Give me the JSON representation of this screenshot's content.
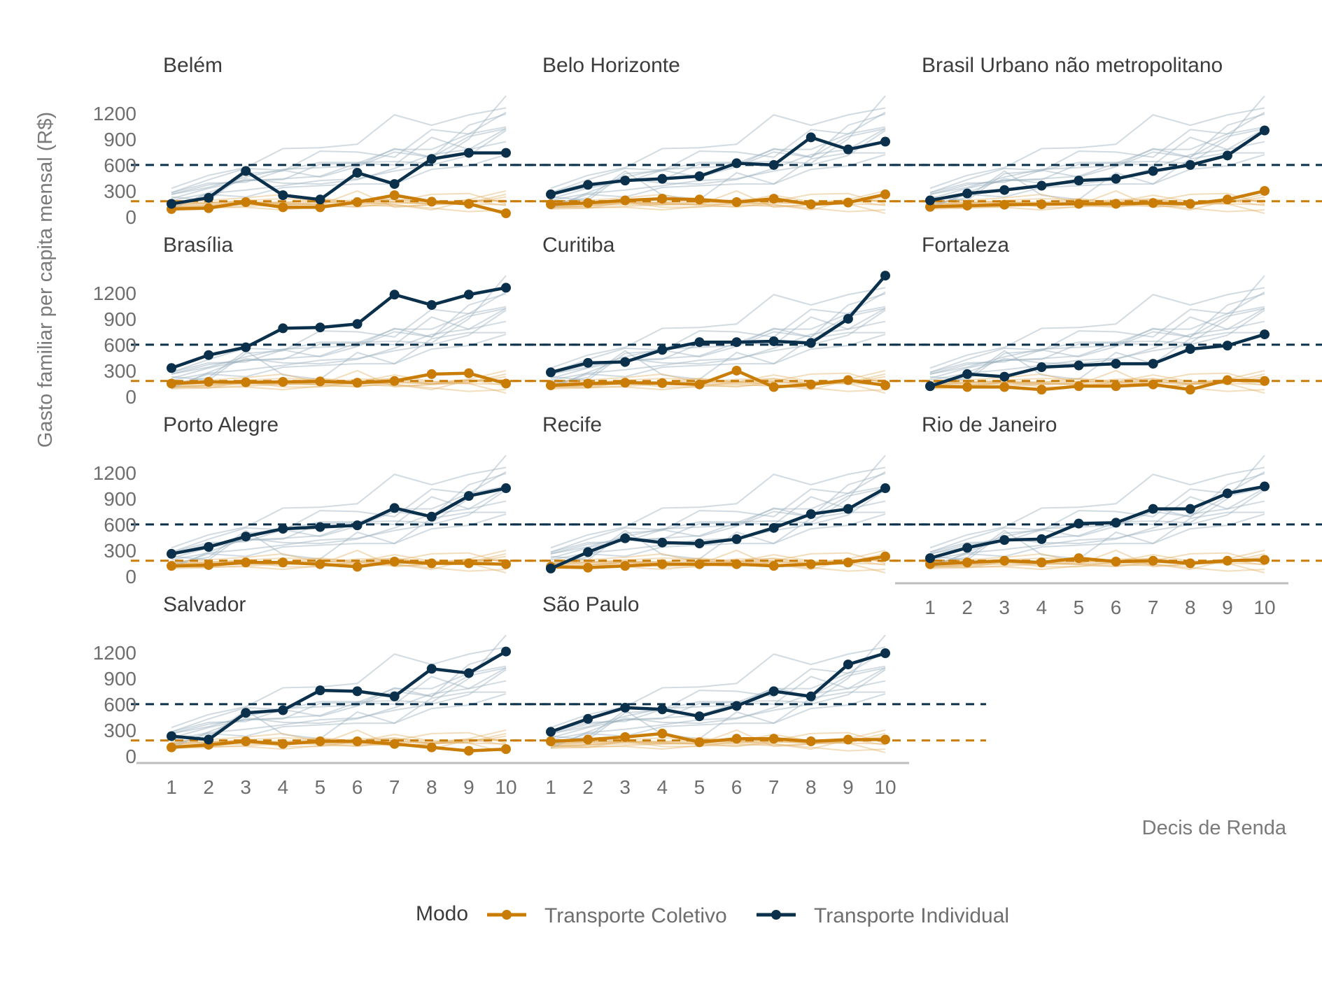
{
  "chart_data": {
    "type": "line",
    "xlabel": "Decis de Renda",
    "ylabel": "Gasto familiar per capita mensal (R$)",
    "x": [
      1,
      2,
      3,
      4,
      5,
      6,
      7,
      8,
      9,
      10
    ],
    "ylim": [
      0,
      1400
    ],
    "yticks": [
      0,
      300,
      600,
      900,
      1200
    ],
    "grid": false,
    "legend": {
      "title": "Modo",
      "position": "bottom",
      "items": [
        {
          "name": "Transporte Coletivo",
          "color": "#c97d07"
        },
        {
          "name": "Transporte Individual",
          "color": "#0b304b"
        }
      ]
    },
    "reference_lines": {
      "Transporte Coletivo": 180,
      "Transporte Individual": 600
    },
    "panels": [
      {
        "title": "Belém",
        "coletivo": [
          90,
          100,
          170,
          110,
          110,
          170,
          250,
          175,
          150,
          40
        ],
        "individual": [
          150,
          220,
          530,
          250,
          200,
          510,
          380,
          670,
          740,
          740
        ]
      },
      {
        "title": "Belo Horizonte",
        "coletivo": [
          145,
          160,
          190,
          210,
          200,
          170,
          210,
          145,
          165,
          260
        ],
        "individual": [
          260,
          370,
          420,
          440,
          470,
          620,
          600,
          920,
          780,
          870
        ]
      },
      {
        "title": "Brasil Urbano não metropolitano",
        "coletivo": [
          115,
          130,
          140,
          145,
          150,
          150,
          160,
          150,
          200,
          300
        ],
        "individual": [
          190,
          270,
          310,
          360,
          420,
          440,
          530,
          600,
          710,
          1000
        ]
      },
      {
        "title": "Brasília",
        "coletivo": [
          150,
          170,
          165,
          170,
          175,
          160,
          180,
          260,
          270,
          150
        ],
        "individual": [
          330,
          480,
          570,
          790,
          800,
          840,
          1180,
          1060,
          1180,
          1260
        ]
      },
      {
        "title": "Curitiba",
        "coletivo": [
          130,
          150,
          160,
          155,
          140,
          300,
          110,
          140,
          190,
          130
        ],
        "individual": [
          280,
          390,
          400,
          540,
          630,
          630,
          640,
          620,
          900,
          1400
        ]
      },
      {
        "title": "Fortaleza",
        "coletivo": [
          120,
          110,
          110,
          80,
          120,
          120,
          140,
          80,
          190,
          180
        ],
        "individual": [
          120,
          260,
          230,
          340,
          360,
          380,
          380,
          550,
          590,
          720
        ]
      },
      {
        "title": "Porto Alegre",
        "coletivo": [
          120,
          130,
          160,
          160,
          140,
          110,
          170,
          150,
          150,
          140
        ],
        "individual": [
          260,
          340,
          460,
          550,
          570,
          590,
          790,
          690,
          930,
          1020
        ]
      },
      {
        "title": "Recife",
        "coletivo": [
          110,
          100,
          120,
          140,
          140,
          140,
          120,
          140,
          160,
          230
        ],
        "individual": [
          90,
          280,
          440,
          390,
          380,
          430,
          560,
          720,
          780,
          1020
        ]
      },
      {
        "title": "Rio de Janeiro",
        "coletivo": [
          140,
          160,
          180,
          160,
          210,
          170,
          180,
          150,
          180,
          190
        ],
        "individual": [
          210,
          330,
          420,
          430,
          610,
          620,
          780,
          780,
          960,
          1040
        ]
      },
      {
        "title": "Salvador",
        "coletivo": [
          100,
          130,
          170,
          140,
          170,
          170,
          140,
          100,
          60,
          80
        ],
        "individual": [
          230,
          190,
          500,
          530,
          760,
          750,
          690,
          1010,
          960,
          1210
        ]
      },
      {
        "title": "São Paulo",
        "coletivo": [
          170,
          190,
          220,
          260,
          160,
          200,
          200,
          170,
          190,
          190
        ],
        "individual": [
          280,
          430,
          560,
          540,
          460,
          580,
          750,
          690,
          1060,
          1190
        ]
      }
    ]
  }
}
